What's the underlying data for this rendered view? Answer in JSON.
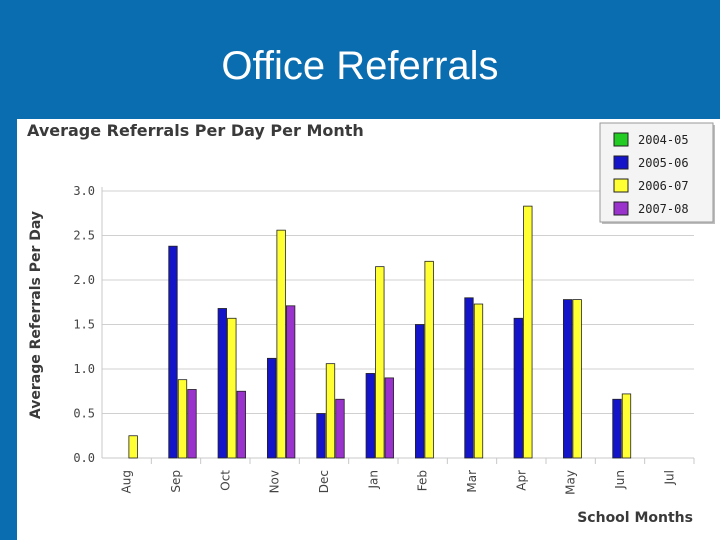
{
  "slide": {
    "title": "Office Referrals"
  },
  "chart_data": {
    "type": "bar",
    "title": "Average Referrals Per Day Per Month",
    "xlabel": "School Months",
    "ylabel": "Average Referrals Per Day",
    "ylim": [
      0,
      3.0
    ],
    "yticks": [
      "0.0",
      "0.5",
      "1.0",
      "1.5",
      "2.0",
      "2.5",
      "3.0"
    ],
    "grid": true,
    "legend_position": "top-right",
    "categories": [
      "Aug",
      "Sep",
      "Oct",
      "Nov",
      "Dec",
      "Jan",
      "Feb",
      "Mar",
      "Apr",
      "May",
      "Jun",
      "Jul"
    ],
    "series": [
      {
        "name": "2004-05",
        "color": "#22cc22",
        "values": [
          null,
          null,
          null,
          null,
          null,
          null,
          null,
          null,
          null,
          null,
          null,
          null
        ]
      },
      {
        "name": "2005-06",
        "color": "#1414c8",
        "values": [
          null,
          2.38,
          1.68,
          1.12,
          0.5,
          0.95,
          1.5,
          1.8,
          1.57,
          1.78,
          0.66,
          null
        ]
      },
      {
        "name": "2006-07",
        "color": "#ffff33",
        "values": [
          0.25,
          0.88,
          1.57,
          2.56,
          1.06,
          2.15,
          2.21,
          1.73,
          2.83,
          1.78,
          0.72,
          null
        ]
      },
      {
        "name": "2007-08",
        "color": "#9933cc",
        "values": [
          null,
          0.77,
          0.75,
          1.71,
          0.66,
          0.9,
          null,
          null,
          null,
          null,
          null,
          null
        ]
      }
    ]
  }
}
